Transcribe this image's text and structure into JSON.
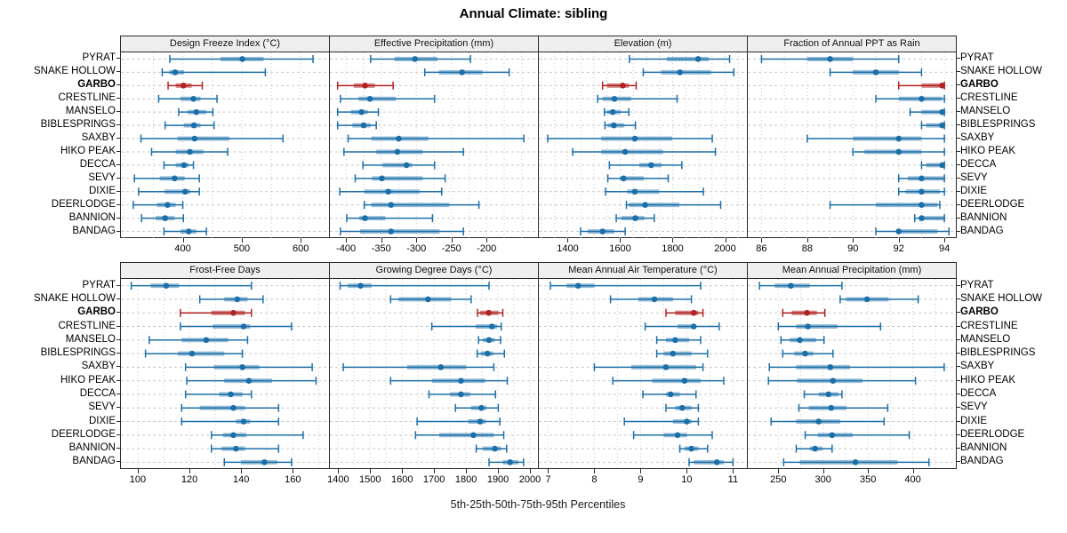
{
  "title": "Annual Climate: sibling",
  "caption": "5th-25th-50th-75th-95th Percentiles",
  "percentile_labels": [
    "5th",
    "25th",
    "50th",
    "75th",
    "95th"
  ],
  "stations": [
    "PYRAT",
    "SNAKE HOLLOW",
    "GARBO",
    "CRESTLINE",
    "MANSELO",
    "BIBLESPRINGS",
    "SAXBY",
    "HIKO PEAK",
    "DECCA",
    "SEVY",
    "DIXIE",
    "DEERLODGE",
    "BANNION",
    "BANDAG"
  ],
  "highlight_station": "GARBO",
  "colors": {
    "series_blue": "#1b6fa8",
    "series_blue_band": "rgba(27,111,168,0.45)",
    "highlight_red": "#b22222",
    "highlight_red_band": "rgba(178,34,34,0.55)",
    "strip_bg": "#efefef",
    "grid": "#c9c9c9",
    "border": "#2a2a2a"
  },
  "chart_data": {
    "type": "scatter",
    "subtype": "trellis percentile dot-whisker plot (5th-25th-50th-75th-95th)",
    "title": "Annual Climate: sibling",
    "caption": "5th-25th-50th-75th-95th Percentiles",
    "legend_position": "none",
    "grid": "dotted vertical minor lines, dashed horizontal row lines",
    "categories": [
      "PYRAT",
      "SNAKE HOLLOW",
      "GARBO",
      "CRESTLINE",
      "MANSELO",
      "BIBLESPRINGS",
      "SAXBY",
      "HIKO PEAK",
      "DECCA",
      "SEVY",
      "DIXIE",
      "DEERLODGE",
      "BANNION",
      "BANDAG"
    ],
    "highlight": "GARBO",
    "panels": [
      {
        "title": "Design Freeze Index (°C)",
        "xlim": [
          295,
          648
        ],
        "ticks": [
          400,
          500,
          600
        ],
        "minor_step": 50,
        "values": [
          [
            378,
            464,
            501,
            537,
            621
          ],
          [
            365,
            377,
            387,
            402,
            540
          ],
          [
            375,
            388,
            401,
            415,
            433
          ],
          [
            359,
            396,
            418,
            430,
            458
          ],
          [
            393,
            408,
            423,
            440,
            451
          ],
          [
            370,
            402,
            419,
            430,
            453
          ],
          [
            329,
            391,
            420,
            479,
            570
          ],
          [
            347,
            388,
            412,
            435,
            476
          ],
          [
            368,
            388,
            402,
            410,
            418
          ],
          [
            318,
            361,
            386,
            403,
            428
          ],
          [
            325,
            369,
            404,
            413,
            428
          ],
          [
            316,
            356,
            374,
            388,
            400
          ],
          [
            330,
            354,
            370,
            386,
            401
          ],
          [
            368,
            396,
            410,
            423,
            440
          ]
        ]
      },
      {
        "title": "Effective Precipitation (mm)",
        "xlim": [
          -423,
          -127
        ],
        "ticks": [
          -400,
          -350,
          -300,
          -250,
          -200
        ],
        "minor_step": 25,
        "values": [
          [
            -365,
            -331,
            -302,
            -270,
            -223
          ],
          [
            -288,
            -268,
            -235,
            -206,
            -168
          ],
          [
            -412,
            -389,
            -373,
            -359,
            -333
          ],
          [
            -408,
            -382,
            -366,
            -329,
            -274
          ],
          [
            -412,
            -393,
            -378,
            -369,
            -354
          ],
          [
            -412,
            -391,
            -375,
            -365,
            -357
          ],
          [
            -397,
            -364,
            -325,
            -283,
            -147
          ],
          [
            -403,
            -357,
            -327,
            -291,
            -233
          ],
          [
            -376,
            -348,
            -314,
            -306,
            -274
          ],
          [
            -387,
            -363,
            -349,
            -291,
            -259
          ],
          [
            -409,
            -374,
            -340,
            -295,
            -264
          ],
          [
            -374,
            -364,
            -336,
            -253,
            -211
          ],
          [
            -399,
            -381,
            -373,
            -344,
            -277
          ],
          [
            -408,
            -380,
            -336,
            -267,
            -233
          ]
        ]
      },
      {
        "title": "Elevation (m)",
        "xlim": [
          1290,
          2083
        ],
        "ticks": [
          1400,
          1600,
          1800,
          2000
        ],
        "minor_step": 50,
        "values": [
          [
            1635,
            1778,
            1897,
            1938,
            2017
          ],
          [
            1688,
            1756,
            1828,
            1946,
            2033
          ],
          [
            1533,
            1550,
            1610,
            1633,
            1661
          ],
          [
            1514,
            1533,
            1578,
            1642,
            1817
          ],
          [
            1540,
            1551,
            1572,
            1601,
            1633
          ],
          [
            1542,
            1553,
            1576,
            1616,
            1658
          ],
          [
            1324,
            1528,
            1656,
            1798,
            1951
          ],
          [
            1419,
            1528,
            1619,
            1764,
            1963
          ],
          [
            1559,
            1673,
            1718,
            1758,
            1835
          ],
          [
            1553,
            1599,
            1613,
            1690,
            1783
          ],
          [
            1544,
            1627,
            1656,
            1749,
            1917
          ],
          [
            1624,
            1633,
            1695,
            1826,
            1983
          ],
          [
            1585,
            1605,
            1658,
            1692,
            1730
          ],
          [
            1449,
            1476,
            1533,
            1578,
            1619
          ]
        ]
      },
      {
        "title": "Fraction of Annual PPT as Rain",
        "xlim": [
          85.4,
          94.5
        ],
        "ticks": [
          86,
          88,
          90,
          92,
          94
        ],
        "minor_step": 1,
        "values": [
          [
            86,
            88,
            89,
            90,
            92
          ],
          [
            89,
            90,
            91,
            92,
            93
          ],
          [
            92,
            93,
            93.9,
            94,
            94
          ],
          [
            91,
            92,
            93,
            93.9,
            94
          ],
          [
            92.5,
            93,
            93.9,
            94,
            94
          ],
          [
            93,
            93.2,
            93.9,
            94,
            94
          ],
          [
            88,
            90,
            92,
            93,
            94
          ],
          [
            90,
            90.5,
            92,
            93,
            94
          ],
          [
            93,
            93.2,
            93.9,
            94,
            94
          ],
          [
            92,
            92.4,
            93,
            94,
            94
          ],
          [
            92,
            92.3,
            93,
            93.8,
            94
          ],
          [
            89,
            91,
            93,
            93.7,
            93.8
          ],
          [
            92.7,
            92.9,
            93,
            94,
            94
          ],
          [
            91,
            91.9,
            92,
            93.7,
            94.2
          ]
        ]
      },
      {
        "title": "Frost-Free Days",
        "xlim": [
          93.5,
          174
        ],
        "ticks": [
          100,
          120,
          140,
          160
        ],
        "minor_step": 10,
        "values": [
          [
            97.5,
            105,
            111,
            116,
            144
          ],
          [
            124,
            133.5,
            138.5,
            142.5,
            148.5
          ],
          [
            116.5,
            128.5,
            137,
            141.5,
            144
          ],
          [
            116.5,
            129,
            141,
            143.5,
            159.5
          ],
          [
            104.5,
            117,
            126.5,
            135,
            142.5
          ],
          [
            103,
            115.5,
            121,
            133.5,
            140.5
          ],
          [
            118.5,
            129.5,
            140.5,
            147,
            167.5
          ],
          [
            119,
            133.5,
            143,
            152,
            169
          ],
          [
            118.5,
            131.5,
            136,
            140.5,
            144
          ],
          [
            117,
            124,
            137,
            141.5,
            154.5
          ],
          [
            117,
            138,
            141,
            143.5,
            154.5
          ],
          [
            128.5,
            133,
            137,
            142,
            164
          ],
          [
            128.5,
            132.5,
            138,
            141.5,
            154.5
          ],
          [
            133.5,
            140,
            149,
            154,
            159.5
          ]
        ]
      },
      {
        "title": "Growing Degree Days (°C)",
        "xlim": [
          1374,
          2025
        ],
        "ticks": [
          1400,
          1500,
          1600,
          1700,
          1800,
          1900,
          2000
        ],
        "minor_step": 50,
        "values": [
          [
            1406,
            1430,
            1470,
            1504,
            1872
          ],
          [
            1564,
            1589,
            1681,
            1753,
            1816
          ],
          [
            1836,
            1844,
            1871,
            1901,
            1915
          ],
          [
            1693,
            1830,
            1881,
            1897,
            1910
          ],
          [
            1839,
            1853,
            1872,
            1890,
            1908
          ],
          [
            1835,
            1846,
            1867,
            1885,
            1920
          ],
          [
            1416,
            1616,
            1721,
            1800,
            1887
          ],
          [
            1564,
            1693,
            1784,
            1860,
            1929
          ],
          [
            1684,
            1751,
            1784,
            1813,
            1892
          ],
          [
            1767,
            1816,
            1848,
            1864,
            1901
          ],
          [
            1647,
            1807,
            1844,
            1862,
            1906
          ],
          [
            1642,
            1716,
            1823,
            1887,
            1918
          ],
          [
            1832,
            1853,
            1890,
            1909,
            1927
          ],
          [
            1872,
            1915,
            1938,
            1964,
            1980
          ]
        ]
      },
      {
        "title": "Mean Annual Air Temperature (°C)",
        "xlim": [
          6.8,
          11.3
        ],
        "ticks": [
          7,
          8,
          9,
          10,
          11
        ],
        "minor_step": 0.5,
        "values": [
          [
            7.05,
            7.4,
            7.65,
            8.0,
            10.3
          ],
          [
            8.35,
            8.95,
            9.3,
            9.7,
            10.1
          ],
          [
            9.55,
            9.75,
            10.15,
            10.25,
            10.35
          ],
          [
            9.1,
            9.8,
            10.15,
            10.2,
            10.7
          ],
          [
            9.35,
            9.55,
            9.75,
            10.05,
            10.3
          ],
          [
            9.35,
            9.5,
            9.7,
            10.1,
            10.45
          ],
          [
            8.0,
            8.8,
            9.55,
            10.2,
            10.35
          ],
          [
            8.4,
            9.25,
            9.95,
            10.3,
            10.8
          ],
          [
            9.05,
            9.55,
            9.65,
            9.85,
            10.2
          ],
          [
            9.55,
            9.75,
            9.9,
            10.1,
            10.25
          ],
          [
            8.65,
            9.7,
            10.0,
            10.1,
            10.25
          ],
          [
            8.85,
            9.5,
            9.8,
            10.0,
            10.55
          ],
          [
            9.85,
            9.95,
            10.1,
            10.25,
            10.45
          ],
          [
            10.05,
            10.15,
            10.65,
            10.8,
            11.0
          ]
        ]
      },
      {
        "title": "Mean Annual Precipitation (mm)",
        "xlim": [
          216,
          448
        ],
        "ticks": [
          250,
          300,
          350,
          400
        ],
        "minor_step": 25,
        "values": [
          [
            229,
            246,
            264,
            285,
            321
          ],
          [
            319,
            326,
            349,
            373,
            406
          ],
          [
            255,
            265,
            282,
            293,
            302
          ],
          [
            250,
            270,
            283,
            316,
            364
          ],
          [
            253,
            263,
            274,
            292,
            301
          ],
          [
            255,
            268,
            280,
            289,
            311
          ],
          [
            240,
            270,
            308,
            330,
            435
          ],
          [
            239,
            271,
            311,
            344,
            403
          ],
          [
            279,
            295,
            306,
            317,
            321
          ],
          [
            273,
            284,
            309,
            326,
            372
          ],
          [
            242,
            270,
            295,
            319,
            368
          ],
          [
            280,
            294,
            310,
            333,
            396
          ],
          [
            270,
            285,
            291,
            299,
            310
          ],
          [
            256,
            274,
            336,
            383,
            418
          ]
        ]
      }
    ]
  }
}
